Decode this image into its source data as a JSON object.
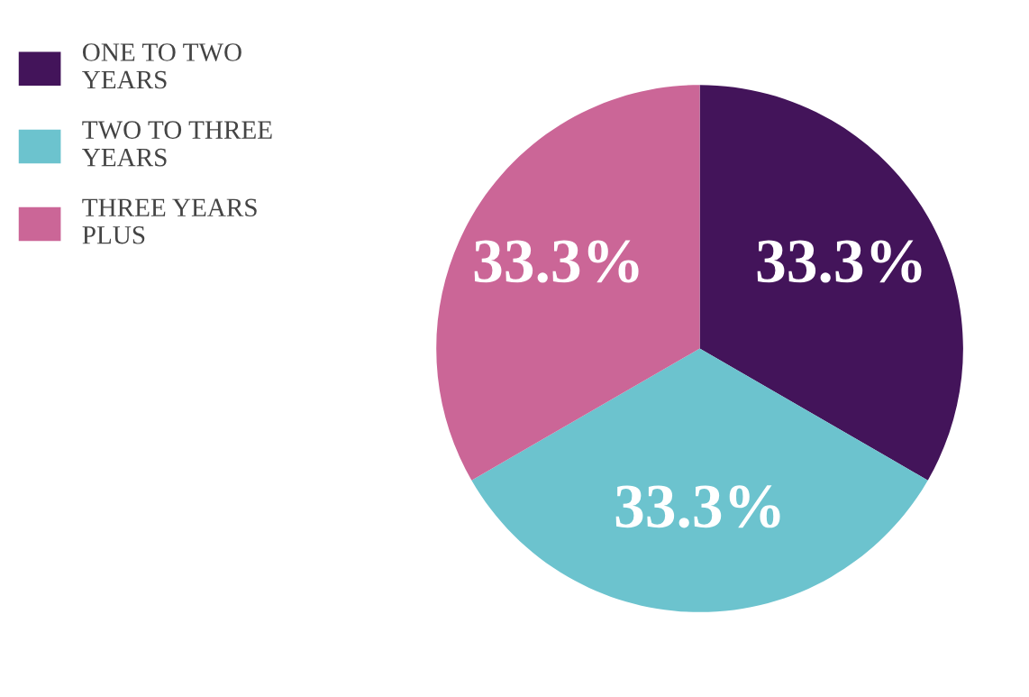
{
  "chart_data": {
    "type": "pie",
    "categories": [
      "ONE TO TWO\nYEARS",
      "TWO TO THREE\nYEARS",
      "THREE YEARS\nPLUS"
    ],
    "values": [
      33.3,
      33.3,
      33.3
    ],
    "colors": [
      "#43145a",
      "#6cc3ce",
      "#cb6697"
    ],
    "value_labels": [
      "33.3%",
      "33.3%",
      "33.3%"
    ],
    "legend": "left"
  }
}
